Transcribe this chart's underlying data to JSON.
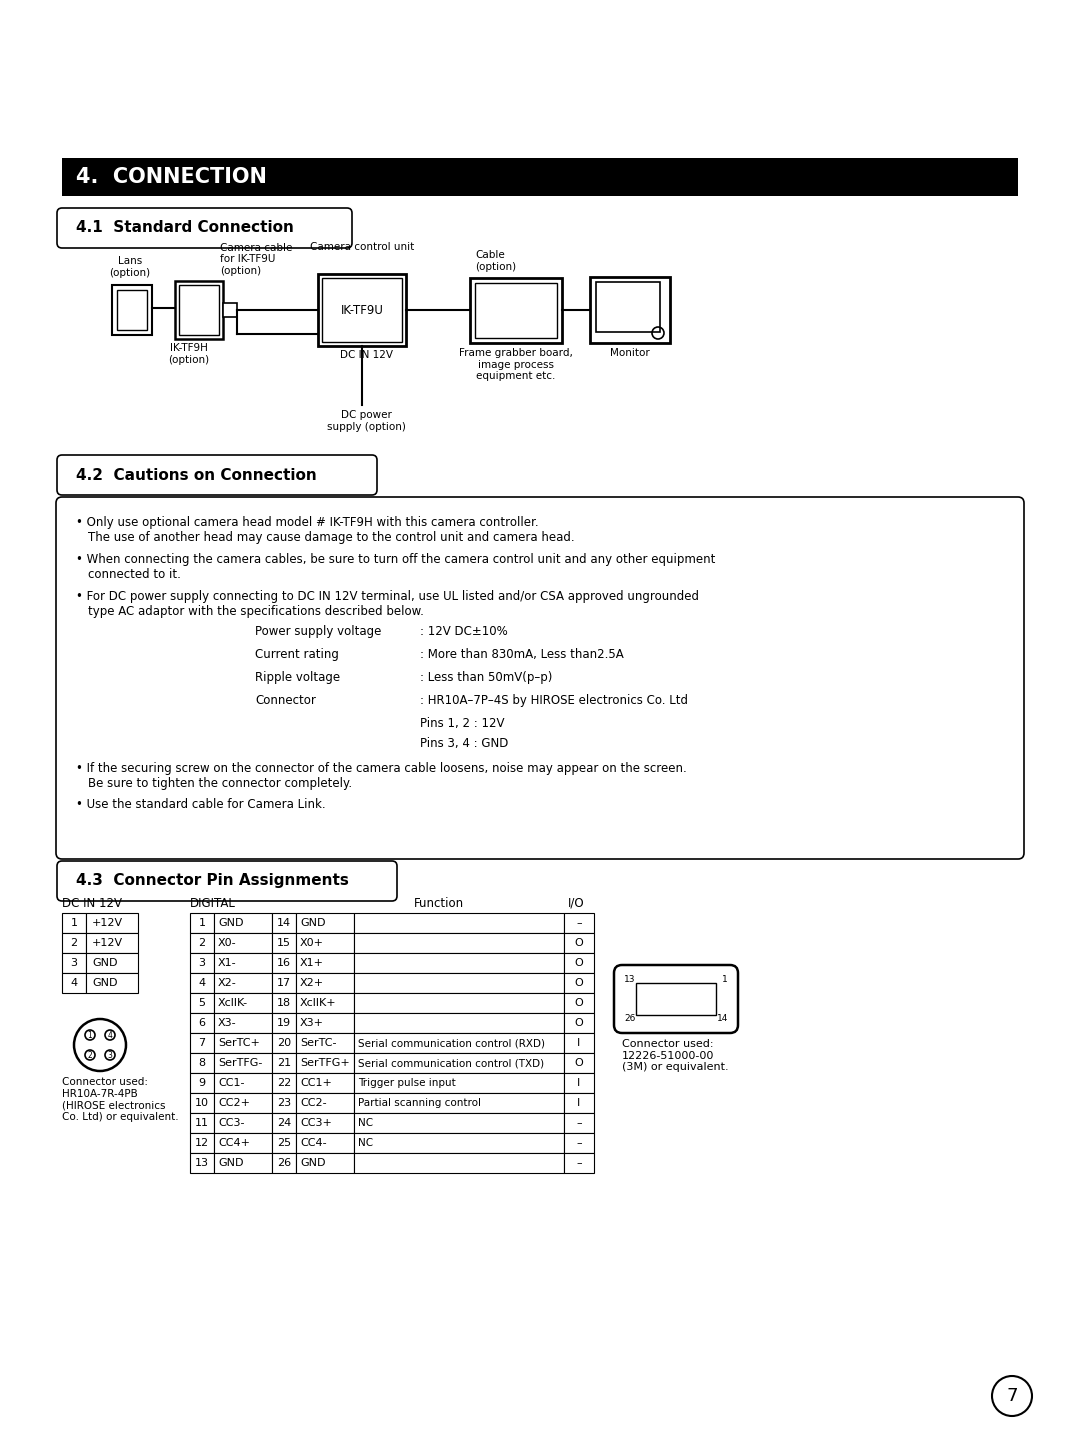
{
  "title": "4.  CONNECTION",
  "section41": "4.1  Standard Connection",
  "section42": "4.2  Cautions on Connection",
  "section43": "4.3  Connector Pin Assignments",
  "dc_in_table": {
    "header": "DC IN 12V",
    "rows": [
      [
        1,
        "+12V"
      ],
      [
        2,
        "+12V"
      ],
      [
        3,
        "GND"
      ],
      [
        4,
        "GND"
      ]
    ]
  },
  "digital_table": {
    "rows": [
      [
        1,
        "GND",
        14,
        "GND",
        "",
        "–"
      ],
      [
        2,
        "X0-",
        15,
        "X0+",
        "",
        "O"
      ],
      [
        3,
        "X1-",
        16,
        "X1+",
        "",
        "O"
      ],
      [
        4,
        "X2-",
        17,
        "X2+",
        "",
        "O"
      ],
      [
        5,
        "XcllK-",
        18,
        "XcllK+",
        "",
        "O"
      ],
      [
        6,
        "X3-",
        19,
        "X3+",
        "",
        "O"
      ],
      [
        7,
        "SerTC+",
        20,
        "SerTC-",
        "Serial communication control (RXD)",
        "I"
      ],
      [
        8,
        "SerTFG-",
        21,
        "SerTFG+",
        "Serial communication control (TXD)",
        "O"
      ],
      [
        9,
        "CC1-",
        22,
        "CC1+",
        "Trigger pulse input",
        "I"
      ],
      [
        10,
        "CC2+",
        23,
        "CC2-",
        "Partial scanning control",
        "I"
      ],
      [
        11,
        "CC3-",
        24,
        "CC3+",
        "NC",
        "–"
      ],
      [
        12,
        "CC4+",
        25,
        "CC4-",
        "NC",
        "–"
      ],
      [
        13,
        "GND",
        26,
        "GND",
        "",
        "–"
      ]
    ]
  },
  "connector_dc_note": "Connector used:\nHR10A-7R-4PB\n(HIROSE electronics\nCo. Ltd) or equivalent.",
  "connector_dig_note": "Connector used:\n12226-51000-00\n(3M) or equivalent.",
  "page_num": "7",
  "bg_color": "#ffffff",
  "bar_color": "#000000",
  "bar_text_color": "#ffffff"
}
